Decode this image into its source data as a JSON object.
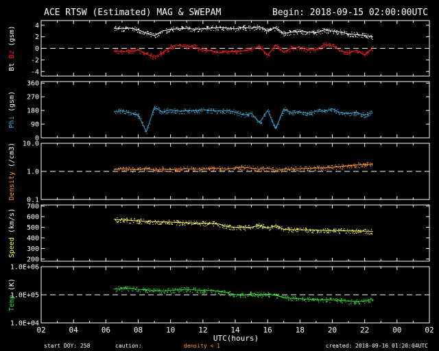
{
  "header": {
    "title": "ACE RTSW (Estimated) MAG & SWEPAM",
    "begin": "Begin: 2018-09-15 02:00:00UTC"
  },
  "footer": {
    "start_doy": "start DOY: 258",
    "caution": "caution:",
    "density_note": "density < 1",
    "created": "created: 2018-09-16 01:20:04UTC"
  },
  "chart_data": {
    "type": "scatter",
    "colors": {
      "bt": "#ffffff",
      "bz": "#ff2020",
      "phi": "#3fa9d8",
      "density": "#ff9933",
      "speed": "#ffff66",
      "temp": "#33dd33",
      "axis": "#ffffff"
    },
    "x_axis": {
      "label": "UTC(hours)",
      "range_hours": [
        2,
        26
      ],
      "tick_labels": [
        "02",
        "04",
        "06",
        "08",
        "10",
        "12",
        "14",
        "16",
        "18",
        "20",
        "22",
        "00",
        "02"
      ]
    },
    "panels": [
      {
        "id": "mag",
        "ylabel_parts": [
          {
            "text": "Bt",
            "color": "#ffffff"
          },
          {
            "text": "Bz",
            "color": "#ff2020"
          },
          {
            "text": "(gsm)",
            "color": "#ffffff"
          }
        ],
        "scale": "linear",
        "ylim": [
          -4.8,
          4.8
        ],
        "ticks": [
          {
            "v": 4,
            "label": "4"
          },
          {
            "v": 2,
            "label": "2"
          },
          {
            "v": 0,
            "label": "0"
          },
          {
            "v": -2,
            "label": "-2"
          },
          {
            "v": -4,
            "label": "-4"
          }
        ],
        "reference_line": 0,
        "series": [
          {
            "name": "Bt",
            "color": "#ffffff",
            "x": [
              6.5,
              7.0,
              7.5,
              8.0,
              8.5,
              9.0,
              9.5,
              10.0,
              10.5,
              11.0,
              11.5,
              12.0,
              12.5,
              13.0,
              13.5,
              14.0,
              14.5,
              15.0,
              15.5,
              16.0,
              16.5,
              17.0,
              17.5,
              18.0,
              18.5,
              19.0,
              19.5,
              20.0,
              20.5,
              21.0,
              21.5,
              22.0,
              22.5
            ],
            "y": [
              3.5,
              3.4,
              3.5,
              3.2,
              2.6,
              2.2,
              3.0,
              3.3,
              3.4,
              3.5,
              3.3,
              3.4,
              3.5,
              3.6,
              3.5,
              3.4,
              3.6,
              3.5,
              3.7,
              3.0,
              3.6,
              2.6,
              2.8,
              2.9,
              2.8,
              2.7,
              3.2,
              3.0,
              2.8,
              2.5,
              2.4,
              2.2,
              2.0
            ]
          },
          {
            "name": "Bz",
            "color": "#ff2020",
            "x": [
              6.5,
              7.0,
              7.5,
              8.0,
              8.5,
              9.0,
              9.5,
              10.0,
              10.5,
              11.0,
              11.5,
              12.0,
              12.5,
              13.0,
              13.5,
              14.0,
              14.5,
              15.0,
              15.5,
              16.0,
              16.5,
              17.0,
              17.5,
              18.0,
              18.5,
              19.0,
              19.5,
              20.0,
              20.5,
              21.0,
              21.5,
              22.0,
              22.5
            ],
            "y": [
              -0.4,
              -0.6,
              -0.5,
              -0.3,
              -1.0,
              -1.5,
              -0.8,
              0.2,
              0.5,
              0.3,
              0.2,
              -0.3,
              -0.4,
              -0.8,
              -0.5,
              -0.6,
              -0.4,
              -0.2,
              0.3,
              -1.2,
              0.6,
              -0.7,
              0.1,
              0.2,
              -0.3,
              -0.2,
              0.6,
              0.5,
              -0.4,
              -0.8,
              -0.3,
              -1.2,
              0.0
            ]
          }
        ]
      },
      {
        "id": "phi",
        "ylabel_parts": [
          {
            "text": "Phi",
            "color": "#3fa9d8"
          },
          {
            "text": "(gsm)",
            "color": "#ffffff"
          }
        ],
        "scale": "linear",
        "ylim": [
          0,
          370
        ],
        "ticks": [
          {
            "v": 360,
            "label": "360"
          },
          {
            "v": 270,
            "label": "270"
          },
          {
            "v": 180,
            "label": "180"
          },
          {
            "v": 90,
            "label": "90"
          },
          {
            "v": 0,
            "label": "0"
          }
        ],
        "series": [
          {
            "name": "Phi",
            "color": "#3fa9d8",
            "x": [
              6.5,
              7.0,
              7.5,
              8.0,
              8.5,
              9.0,
              9.5,
              10.0,
              10.5,
              11.0,
              11.5,
              12.0,
              12.5,
              13.0,
              13.5,
              14.0,
              14.5,
              15.0,
              15.5,
              16.0,
              16.5,
              17.0,
              17.5,
              18.0,
              18.5,
              19.0,
              19.5,
              20.0,
              20.5,
              21.0,
              21.5,
              22.0,
              22.5
            ],
            "y": [
              170,
              178,
              165,
              150,
              40,
              200,
              170,
              185,
              175,
              180,
              178,
              185,
              180,
              175,
              180,
              170,
              150,
              160,
              100,
              180,
              60,
              190,
              165,
              170,
              160,
              175,
              175,
              190,
              165,
              160,
              165,
              150,
              165
            ]
          }
        ]
      },
      {
        "id": "density",
        "ylabel_parts": [
          {
            "text": "Density",
            "color": "#ff9933"
          },
          {
            "text": "(/cm3)",
            "color": "#ffffff"
          }
        ],
        "scale": "log",
        "ylim": [
          0.1,
          10
        ],
        "ticks": [
          {
            "v": 10,
            "label": "10.0"
          },
          {
            "v": 1,
            "label": "1.0"
          },
          {
            "v": 0.1,
            "label": "0.1"
          }
        ],
        "reference_line": 1,
        "series": [
          {
            "name": "Density",
            "color": "#ff9933",
            "x": [
              6.5,
              7.0,
              7.5,
              8.0,
              8.5,
              9.0,
              9.5,
              10.0,
              10.5,
              11.0,
              11.5,
              12.0,
              12.5,
              13.0,
              13.5,
              14.0,
              14.5,
              15.0,
              15.5,
              16.0,
              16.5,
              17.0,
              17.5,
              18.0,
              18.5,
              19.0,
              19.5,
              20.0,
              20.5,
              21.0,
              21.5,
              22.0,
              22.5
            ],
            "y": [
              1.2,
              1.25,
              1.2,
              1.15,
              1.3,
              1.1,
              1.2,
              1.15,
              1.2,
              1.25,
              1.2,
              1.2,
              1.25,
              1.3,
              1.2,
              1.35,
              1.4,
              1.3,
              1.2,
              1.3,
              1.1,
              1.2,
              1.2,
              1.25,
              1.3,
              1.3,
              1.35,
              1.4,
              1.5,
              1.6,
              1.7,
              1.75,
              1.8
            ]
          }
        ]
      },
      {
        "id": "speed",
        "ylabel_parts": [
          {
            "text": "Speed",
            "color": "#ffff66"
          },
          {
            "text": "(km/s)",
            "color": "#ffffff"
          }
        ],
        "scale": "linear",
        "ylim": [
          180,
          710
        ],
        "ticks": [
          {
            "v": 700,
            "label": "700"
          },
          {
            "v": 600,
            "label": "600"
          },
          {
            "v": 500,
            "label": "500"
          },
          {
            "v": 400,
            "label": "400"
          },
          {
            "v": 300,
            "label": "300"
          },
          {
            "v": 200,
            "label": "200"
          }
        ],
        "series": [
          {
            "name": "Speed",
            "color": "#ffff66",
            "x": [
              6.5,
              7.0,
              7.5,
              8.0,
              8.5,
              9.0,
              9.5,
              10.0,
              10.5,
              11.0,
              11.5,
              12.0,
              12.5,
              13.0,
              13.5,
              14.0,
              14.5,
              15.0,
              15.5,
              16.0,
              16.5,
              17.0,
              17.5,
              18.0,
              18.5,
              19.0,
              19.5,
              20.0,
              20.5,
              21.0,
              21.5,
              22.0,
              22.5
            ],
            "y": [
              575,
              570,
              565,
              560,
              555,
              552,
              550,
              548,
              545,
              543,
              540,
              538,
              536,
              530,
              505,
              500,
              498,
              500,
              520,
              490,
              515,
              480,
              478,
              476,
              474,
              472,
              470,
              469,
              468,
              466,
              465,
              463,
              460
            ]
          }
        ]
      },
      {
        "id": "temp",
        "ylabel_parts": [
          {
            "text": "Temp",
            "color": "#33dd33"
          },
          {
            "text": "(K)",
            "color": "#ffffff"
          }
        ],
        "scale": "log",
        "ylim": [
          10000,
          1000000
        ],
        "ticks": [
          {
            "v": 1000000,
            "label": "1.0E+06"
          },
          {
            "v": 100000,
            "label": "1.0E+05"
          },
          {
            "v": 10000,
            "label": "1.0E+04"
          }
        ],
        "reference_line": 100000,
        "series": [
          {
            "name": "Temp",
            "color": "#33dd33",
            "x": [
              6.5,
              7.0,
              7.5,
              8.0,
              8.5,
              9.0,
              9.5,
              10.0,
              10.5,
              11.0,
              11.5,
              12.0,
              12.5,
              13.0,
              13.5,
              14.0,
              14.5,
              15.0,
              15.5,
              16.0,
              16.5,
              17.0,
              17.5,
              18.0,
              18.5,
              19.0,
              19.5,
              20.0,
              20.5,
              21.0,
              21.5,
              22.0,
              22.5
            ],
            "y": [
              160000,
              165000,
              170000,
              155000,
              150000,
              140000,
              135000,
              145000,
              150000,
              155000,
              150000,
              140000,
              145000,
              130000,
              120000,
              100000,
              95000,
              110000,
              100000,
              105000,
              95000,
              80000,
              75000,
              72000,
              70000,
              68000,
              66000,
              65000,
              63000,
              60000,
              58000,
              60000,
              70000
            ]
          }
        ]
      }
    ]
  }
}
